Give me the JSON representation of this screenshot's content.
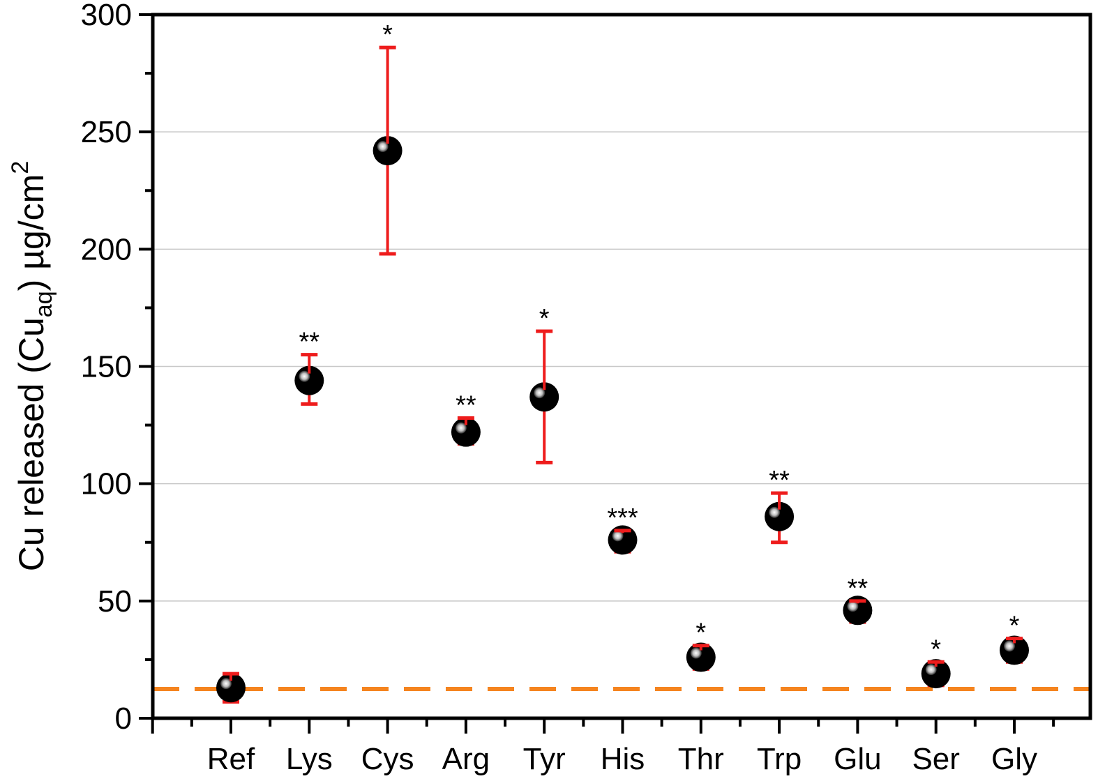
{
  "chart_data": {
    "type": "scatter",
    "title": "",
    "xlabel": "",
    "ylabel": {
      "main": "Cu released (Cu",
      "subscript": "aq",
      "after": ") µg/cm",
      "superscript": "2"
    },
    "categories": [
      "Ref",
      "Lys",
      "Cys",
      "Arg",
      "Tyr",
      "His",
      "Thr",
      "Trp",
      "Glu",
      "Ser",
      "Gly"
    ],
    "series": [
      {
        "values": [
          13,
          144,
          242,
          122,
          137,
          76,
          26,
          86,
          46,
          19,
          29
        ],
        "error_low": [
          7,
          134,
          198,
          117,
          109,
          71,
          21,
          75,
          41,
          14,
          24
        ],
        "error_high": [
          19,
          155,
          286,
          128,
          165,
          80,
          31,
          96,
          50,
          24,
          34
        ]
      }
    ],
    "significance": [
      "",
      "**",
      "*",
      "**",
      "*",
      "***",
      "*",
      "**",
      "**",
      "*",
      "*"
    ],
    "reference_line": {
      "value": 12.5,
      "style": "dashed",
      "color": "#f5841f"
    },
    "ylim": [
      0,
      300
    ],
    "yticks": [
      "0",
      "50",
      "100",
      "150",
      "200",
      "250",
      "300"
    ],
    "grid": "horizontal",
    "colors": {
      "marker": "#000000",
      "error_bar": "#ee1c1c",
      "grid": "#c8c8c8"
    }
  }
}
